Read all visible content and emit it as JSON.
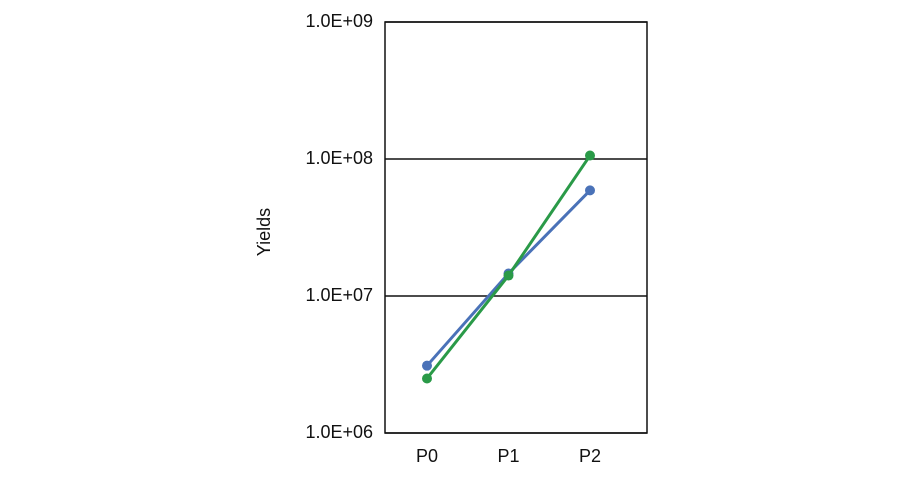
{
  "chart_data": {
    "type": "line",
    "y_label": "Yields",
    "categories": [
      "P0",
      "P1",
      "P2"
    ],
    "series": [
      {
        "color": "#4a72b8",
        "values": [
          3100000,
          14600000,
          59000000
        ]
      },
      {
        "color": "#2a9a48",
        "values": [
          2500000,
          14100000,
          106000000
        ]
      }
    ],
    "y_log": true,
    "grid": true,
    "ylim": [
      1000000,
      1000000000
    ],
    "yticks": [
      {
        "value": 1000000,
        "label": "1.0E+06"
      },
      {
        "value": 10000000,
        "label": "1.0E+07"
      },
      {
        "value": 100000000,
        "label": "1.0E+08"
      },
      {
        "value": 1000000000,
        "label": "1.0E+09"
      }
    ]
  }
}
